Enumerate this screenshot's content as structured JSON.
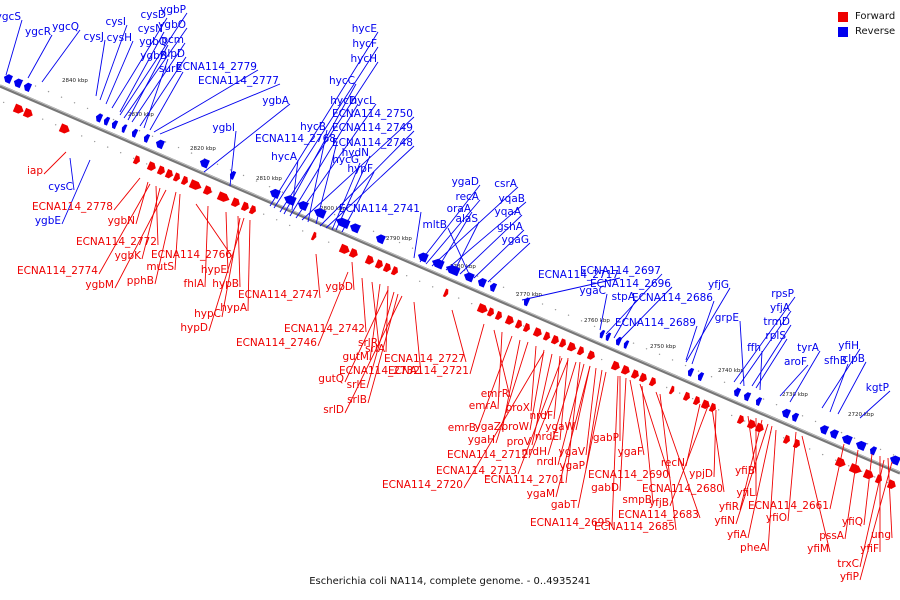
{
  "caption": "Escherichia coli NA114, complete genome. - 0..4935241",
  "legend": [
    {
      "label": "Forward",
      "color": "#ee0000"
    },
    {
      "label": "Reverse",
      "color": "#0000ee"
    }
  ],
  "colors": {
    "forward": "#ee0000",
    "reverse": "#0000ee",
    "axis": "#888888"
  },
  "ticks": [
    "2840 kbp",
    "2830 kbp",
    "2820 kbp",
    "2810 kbp",
    "2800 kbp",
    "2790 kbp",
    "2780 kbp",
    "2770 kbp",
    "2760 kbp",
    "2750 kbp",
    "2740 kbp",
    "2730 kbp",
    "2720 kbp"
  ],
  "reverse_labels": [
    "ygcS",
    "ygcR",
    "ygcQ",
    "cysJ",
    "cysI",
    "cysH",
    "cysD",
    "cysN",
    "ygbP",
    "ygbO",
    "ygbQ",
    "pcm",
    "nlpD",
    "ygbB",
    "surE",
    "ECNA114_2779",
    "ECNA114_2777",
    "ygbA",
    "ygbI",
    "hycE",
    "hycF",
    "hycH",
    "hycC",
    "hycD",
    "hycL",
    "ECNA114_2750",
    "hycB",
    "ECNA114_2768",
    "ECNA114_2749",
    "ECNA114_2748",
    "hycA",
    "hycG",
    "hydN",
    "hypF",
    "ygaD",
    "recA",
    "csrA",
    "oraA",
    "yqaB",
    "alaS",
    "yqaA",
    "mltB",
    "gshA",
    "ECNA114_2741",
    "ygaG",
    "ECNA114_2717",
    "ygaC",
    "ECNA114_2697",
    "stpA",
    "ECNA114_2696",
    "yfjG",
    "ECNA114_2686",
    "ECNA114_2689",
    "rpsP",
    "yfjA",
    "grpE",
    "trmD",
    "rplS",
    "ffh",
    "tyrA",
    "aroF",
    "yfiH",
    "sfhB",
    "clpB",
    "kgtP",
    "cysC",
    "ygbE"
  ],
  "forward_labels": [
    "iap",
    "ECNA114_2778",
    "ygbN",
    "ECNA114_2772",
    "ygbK",
    "ECNA114_2774",
    "ygbM",
    "mutS",
    "pphB",
    "ECNA114_2766",
    "fhlA",
    "hypE",
    "hypB",
    "hypC",
    "hypA",
    "hypD",
    "ECNA114_2747",
    "ygbD",
    "ECNA114_2742",
    "ECNA114_2746",
    "srlR",
    "gutM",
    "srlA",
    "gutQ",
    "srlE",
    "srlB",
    "srlD",
    "ECNA114_2732",
    "ECNA114_2727",
    "ECNA114_2721",
    "emrR",
    "emrA",
    "emrB",
    "ygaZ",
    "ygaH",
    "proX",
    "proW",
    "proV",
    "nrdF",
    "nrdE",
    "nrdH",
    "nrdI",
    "ygaW",
    "ygaV",
    "ygaP",
    "ECNA114_2712",
    "ECNA114_2713",
    "ECNA114_2720",
    "ECNA114_2701",
    "ygaM",
    "gabT",
    "gabP",
    "ygaF",
    "gabD",
    "ECNA114_2690",
    "smpB",
    "ECNA114_2695",
    "ECNA114_2683",
    "ECNA114_2685",
    "recN",
    "ECNA114_2680",
    "yfjB",
    "ypjD",
    "yfiB",
    "yfiL",
    "yfiR",
    "yfiN",
    "yfiA",
    "yfiO",
    "pheA",
    "yfiM",
    "ECNA114_2661",
    "pssA",
    "yfiQ",
    "yfiF",
    "ung",
    "trxC",
    "yfiP"
  ]
}
